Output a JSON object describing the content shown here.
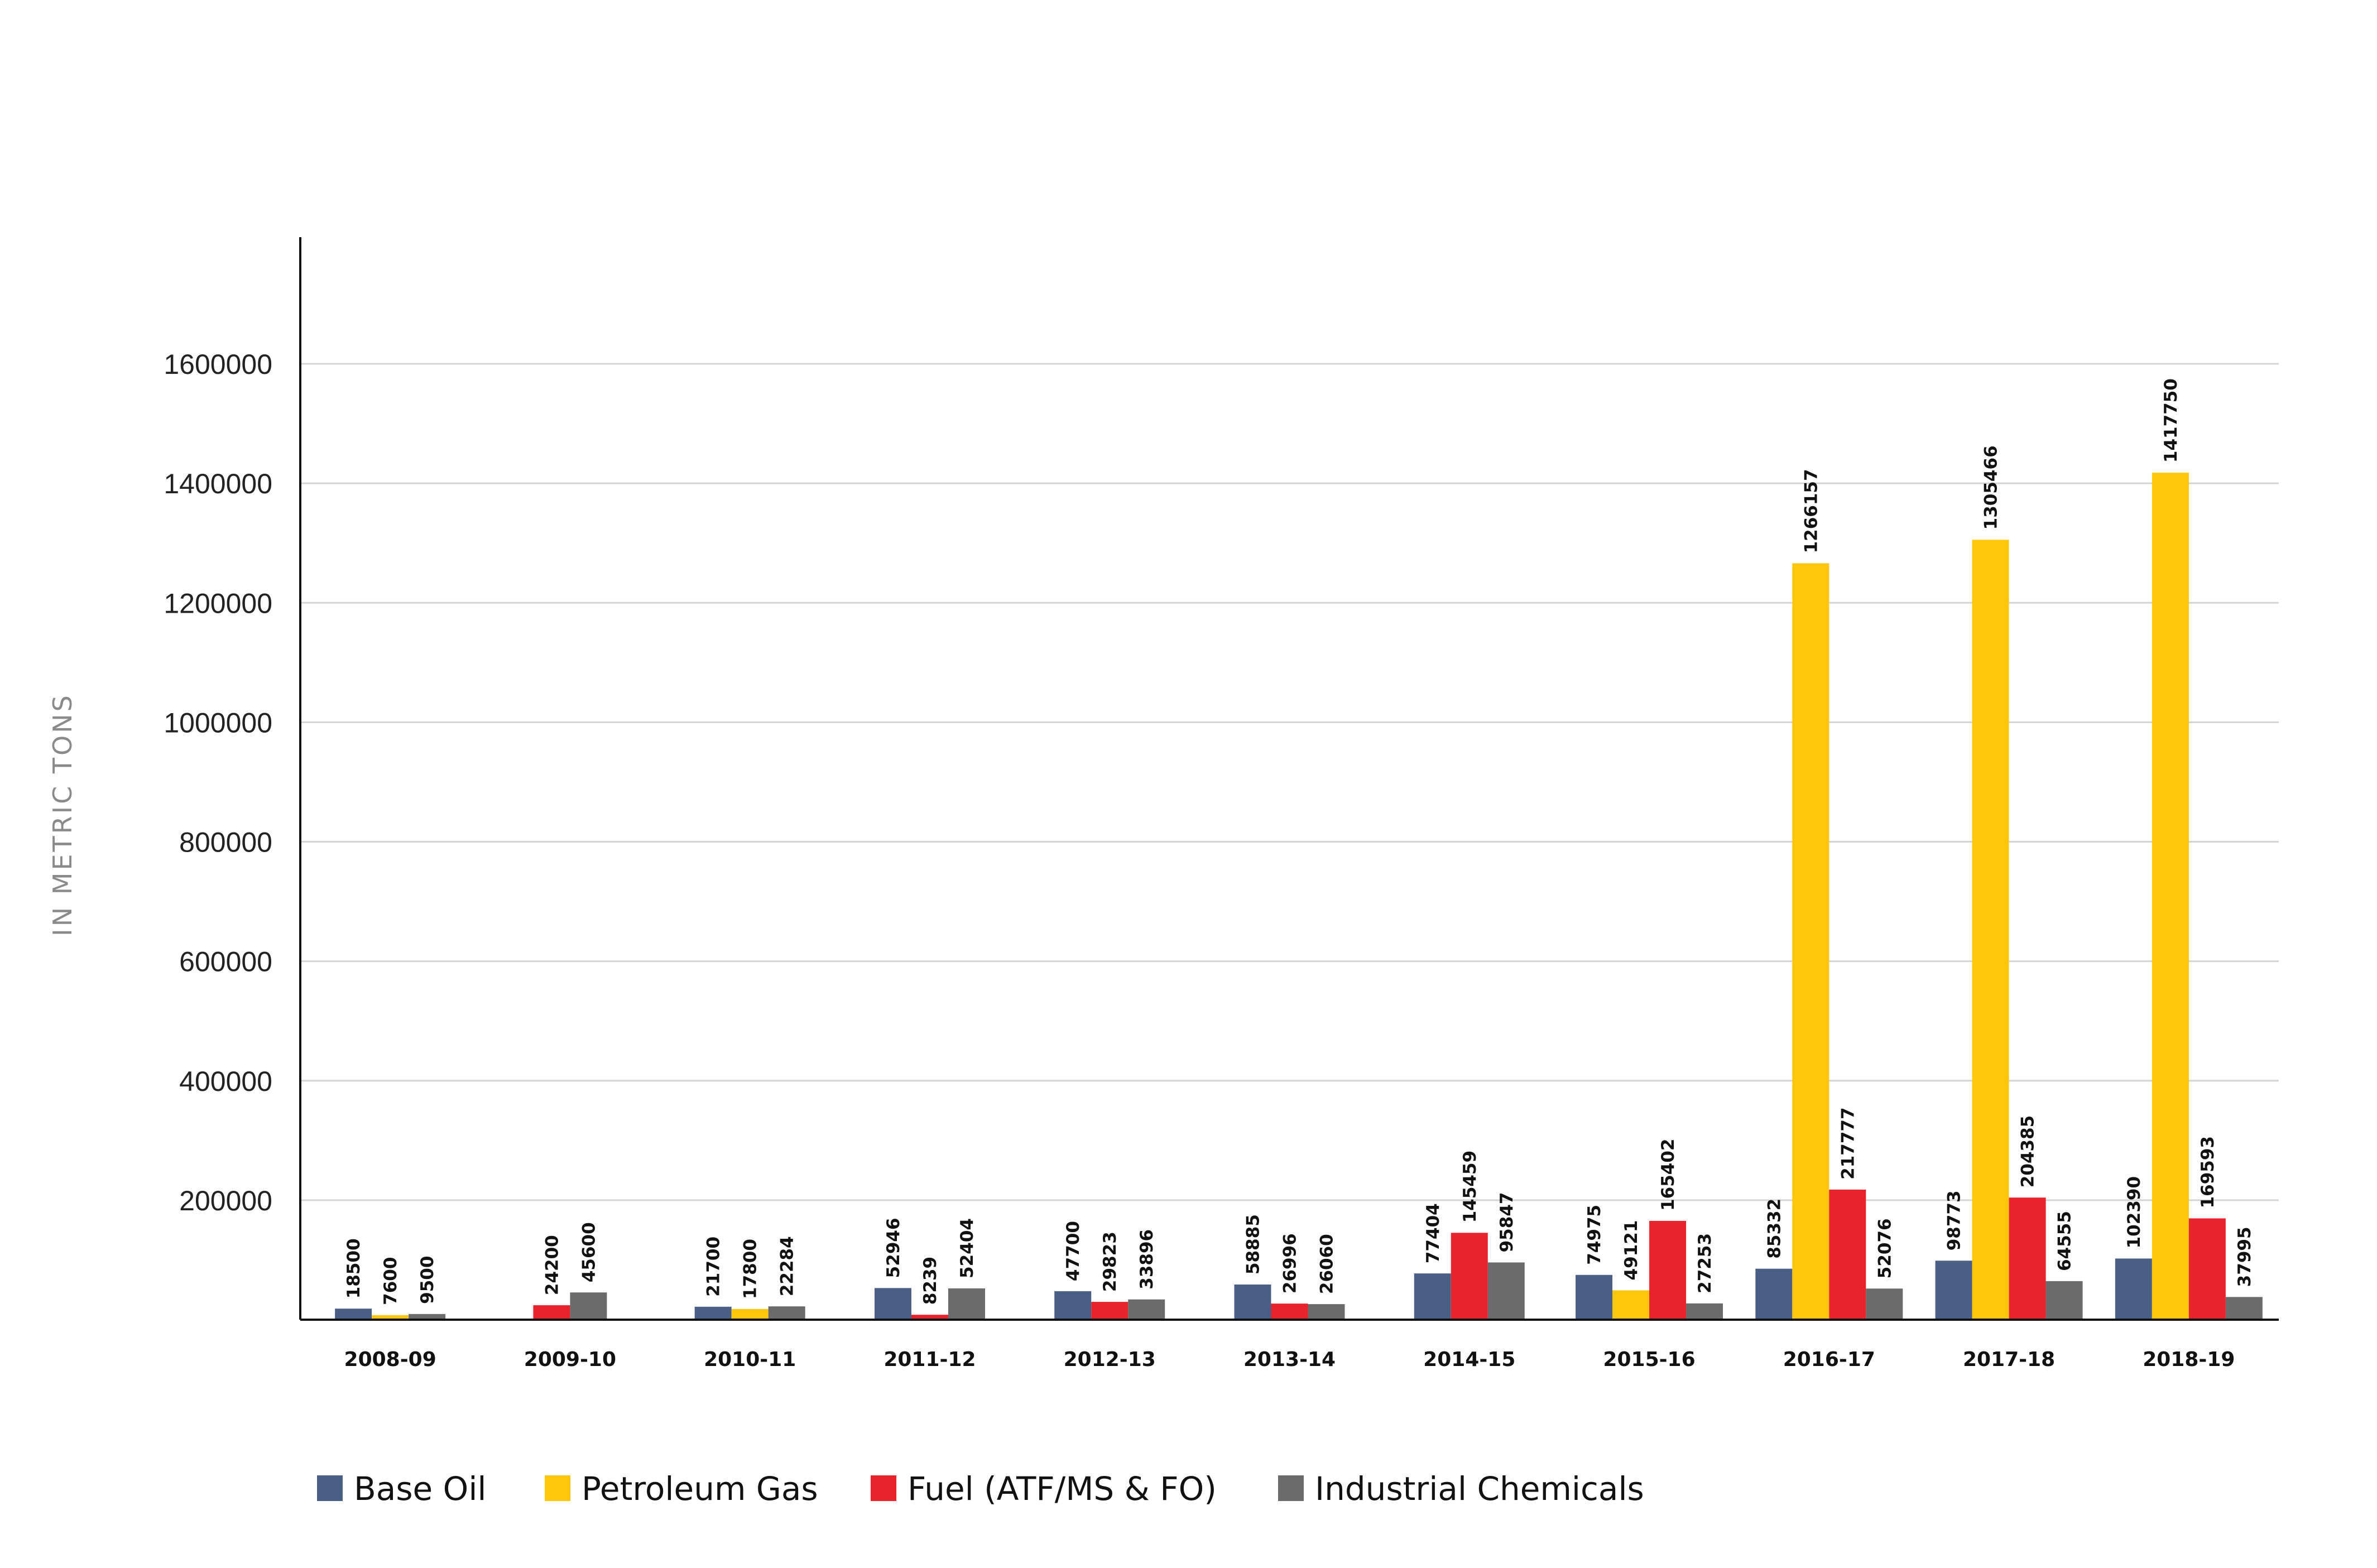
{
  "chart_data": {
    "type": "bar",
    "ylabel": "IN METRIC TONS",
    "ylim": [
      0,
      1600000
    ],
    "yticks": [
      200000,
      400000,
      600000,
      800000,
      1000000,
      1200000,
      1400000,
      1600000
    ],
    "ytick_labels": [
      "200000",
      "400000",
      "600000",
      "800000",
      "1000000",
      "1200000",
      "1400000",
      "1600000"
    ],
    "grid": true,
    "legend_position": "bottom",
    "categories": [
      "2008-09",
      "2009-10",
      "2010-11",
      "2011-12",
      "2012-13",
      "2013-14",
      "2014-15",
      "2015-16",
      "2016-17",
      "2017-18",
      "2018-19"
    ],
    "series": [
      {
        "name": "Base Oil",
        "color": "#4a5f86",
        "values": [
          18500,
          null,
          21700,
          52946,
          47700,
          58885,
          77404,
          74975,
          85332,
          98773,
          102390
        ],
        "labels": [
          "18500",
          "",
          "21700",
          "52946",
          "47700",
          "58885",
          "77404",
          "74975",
          "85332",
          "98773",
          "102390"
        ]
      },
      {
        "name": "Petroleum Gas",
        "color": "#ffc60b",
        "values": [
          7600,
          null,
          17800,
          null,
          null,
          null,
          null,
          49121,
          1266157,
          1305466,
          1417750
        ],
        "labels": [
          "7600",
          "",
          "17800",
          "",
          "",
          "",
          "",
          "49121",
          "1266157",
          "1305466",
          "1417750"
        ]
      },
      {
        "name": "Fuel (ATF/MS & FO)",
        "color": "#e8232b",
        "values": [
          null,
          24200,
          null,
          8239,
          29823,
          26996,
          145459,
          165402,
          217777,
          204385,
          169593
        ],
        "labels": [
          "",
          "24200",
          "",
          "8239",
          "29823",
          "26996",
          "145459",
          "165402",
          "217777",
          "204385",
          "169593"
        ]
      },
      {
        "name": "Industrial Chemicals",
        "color": "#6b6b6b",
        "values": [
          9500,
          45600,
          22284,
          52404,
          33896,
          26060,
          95847,
          27253,
          52076,
          64555,
          37995
        ],
        "labels": [
          "9500",
          "45600",
          "22284",
          "52404",
          "33896",
          "26060",
          "95847",
          "27253",
          "52076",
          "64555",
          "37995"
        ]
      }
    ]
  }
}
